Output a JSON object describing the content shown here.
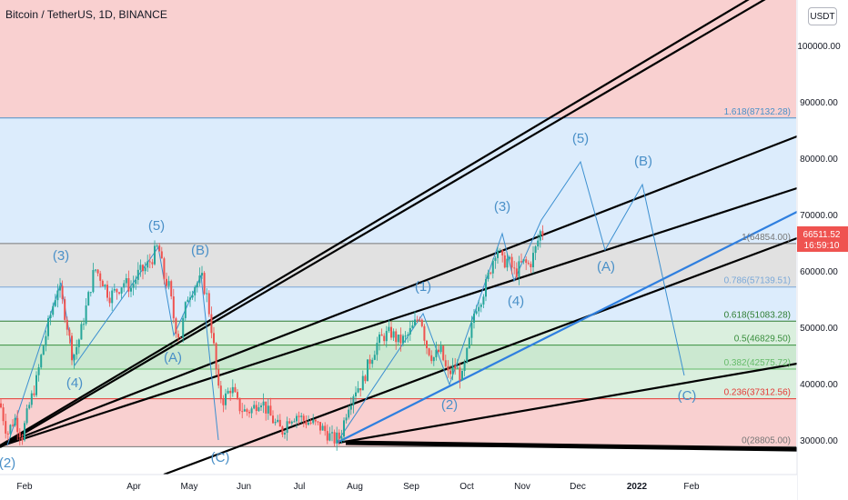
{
  "header": {
    "title": "Bitcoin / TetherUS, 1D, BINANCE",
    "currency_button": "USDT"
  },
  "price_tag": {
    "price": "66511.52",
    "countdown": "16:59:10",
    "color": "#ef5350"
  },
  "colors": {
    "red_zone": "#f8c8c8",
    "blue_zone": "#d6e9fb",
    "gray_zone": "#dcdcdc",
    "green_zone": "#d3ecd8",
    "wave_label": "#4a90c8",
    "trend_blue": "#2f7fdf"
  },
  "chart_data": {
    "type": "candlestick",
    "title": "Bitcoin / TetherUS, 1D, BINANCE",
    "y_axis_ticks": [
      "100000.00",
      "90000.00",
      "80000.00",
      "70000.00",
      "60000.00",
      "50000.00",
      "40000.00",
      "30000.00"
    ],
    "y_tick_values": [
      100000,
      90000,
      80000,
      70000,
      60000,
      50000,
      40000,
      30000
    ],
    "x_axis_ticks": [
      "Feb",
      "Apr",
      "May",
      "Jun",
      "Jul",
      "Aug",
      "Sep",
      "Oct",
      "Nov",
      "Dec",
      "2022",
      "Feb"
    ],
    "fib_levels": [
      {
        "label": "1.618(87132.28)",
        "value": 87132.28,
        "color": "#4a90c8"
      },
      {
        "label": "1(64854.00)",
        "value": 64854.0,
        "color": "#777777"
      },
      {
        "label": "0.786(57139.51)",
        "value": 57139.51,
        "color": "#7aa8d8"
      },
      {
        "label": "0.618(51083.28)",
        "value": 51083.28,
        "color": "#2e7d32"
      },
      {
        "label": "0.5(46829.50)",
        "value": 46829.5,
        "color": "#388e3c"
      },
      {
        "label": "0.382(42575.72)",
        "value": 42575.72,
        "color": "#66bb6a"
      },
      {
        "label": "0.236(37312.56)",
        "value": 37312.56,
        "color": "#e53935"
      },
      {
        "label": "0(28805.00)",
        "value": 28805.0,
        "color": "#777777"
      }
    ],
    "wave_labels": [
      "(2)",
      "(3)",
      "(4)",
      "(5)",
      "(A)",
      "(B)",
      "(C)",
      "(1)",
      "(2)",
      "(3)",
      "(4)",
      "(5)",
      "(A)",
      "(B)",
      "(C)"
    ],
    "price_path": [
      [
        0,
        36500
      ],
      [
        8,
        31000
      ],
      [
        16,
        34000
      ],
      [
        24,
        30500
      ],
      [
        32,
        36000
      ],
      [
        40,
        40500
      ],
      [
        48,
        47000
      ],
      [
        56,
        52500
      ],
      [
        64,
        57500
      ],
      [
        72,
        52000
      ],
      [
        80,
        44500
      ],
      [
        88,
        48500
      ],
      [
        96,
        54500
      ],
      [
        104,
        60500
      ],
      [
        112,
        58500
      ],
      [
        120,
        55500
      ],
      [
        128,
        56500
      ],
      [
        136,
        58000
      ],
      [
        144,
        57000
      ],
      [
        152,
        59500
      ],
      [
        160,
        60500
      ],
      [
        168,
        62500
      ],
      [
        174,
        64500
      ],
      [
        180,
        59000
      ],
      [
        186,
        57000
      ],
      [
        192,
        50500
      ],
      [
        198,
        48000
      ],
      [
        206,
        55500
      ],
      [
        214,
        57500
      ],
      [
        222,
        58500
      ],
      [
        228,
        55000
      ],
      [
        234,
        48000
      ],
      [
        240,
        38500
      ],
      [
        246,
        37000
      ],
      [
        254,
        39500
      ],
      [
        262,
        36000
      ],
      [
        270,
        35000
      ],
      [
        278,
        35500
      ],
      [
        286,
        37500
      ],
      [
        294,
        35000
      ],
      [
        302,
        33000
      ],
      [
        310,
        31500
      ],
      [
        318,
        34000
      ],
      [
        326,
        34500
      ],
      [
        334,
        33500
      ],
      [
        342,
        33000
      ],
      [
        350,
        32500
      ],
      [
        358,
        31500
      ],
      [
        366,
        30000
      ],
      [
        374,
        30500
      ],
      [
        382,
        36000
      ],
      [
        390,
        39000
      ],
      [
        398,
        40000
      ],
      [
        406,
        44000
      ],
      [
        414,
        47000
      ],
      [
        422,
        48500
      ],
      [
        430,
        49000
      ],
      [
        438,
        47500
      ],
      [
        446,
        48000
      ],
      [
        454,
        50000
      ],
      [
        462,
        52500
      ],
      [
        468,
        47000
      ],
      [
        476,
        44500
      ],
      [
        484,
        46000
      ],
      [
        492,
        41500
      ],
      [
        500,
        43000
      ],
      [
        508,
        41000
      ],
      [
        516,
        47500
      ],
      [
        522,
        53500
      ],
      [
        528,
        55000
      ],
      [
        534,
        57500
      ],
      [
        540,
        61000
      ],
      [
        546,
        64500
      ],
      [
        552,
        61500
      ],
      [
        558,
        62000
      ],
      [
        566,
        59500
      ],
      [
        574,
        61500
      ],
      [
        582,
        61000
      ],
      [
        588,
        63500
      ],
      [
        594,
        67000
      ],
      [
        600,
        66500
      ]
    ]
  }
}
